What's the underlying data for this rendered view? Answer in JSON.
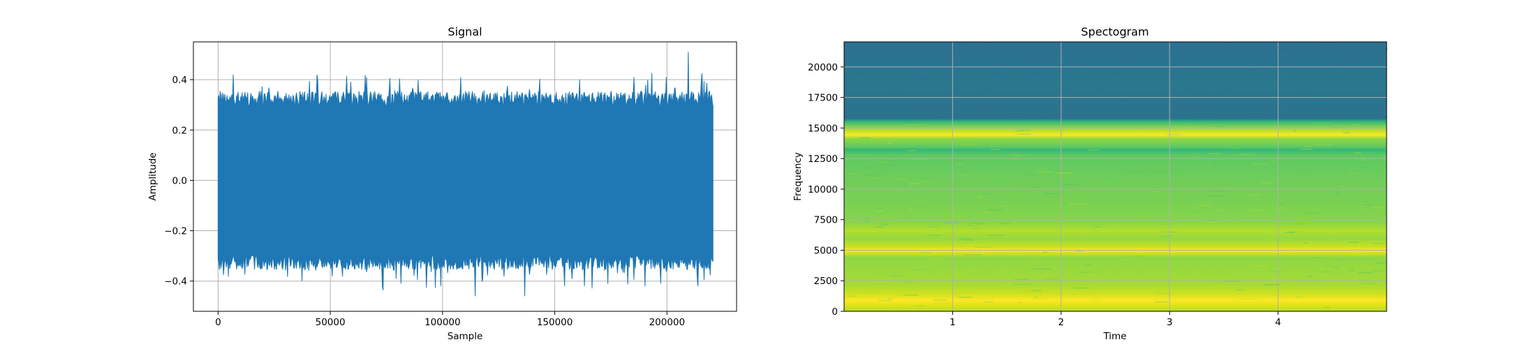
{
  "chart_data": [
    {
      "type": "line",
      "title": "Signal",
      "xlabel": "Sample",
      "ylabel": "Amplitude",
      "xlim": [
        -11000,
        231000
      ],
      "ylim": [
        -0.52,
        0.55
      ],
      "xticks": [
        0,
        50000,
        100000,
        150000,
        200000
      ],
      "xtick_labels": [
        "0",
        "50000",
        "100000",
        "150000",
        "200000"
      ],
      "yticks": [
        -0.4,
        -0.2,
        0.0,
        0.2,
        0.4
      ],
      "ytick_labels": [
        "−0.4",
        "−0.2",
        "0.0",
        "0.2",
        "0.4"
      ],
      "grid": true,
      "color": "#1f77b4",
      "series": [
        {
          "x_range": [
            0,
            220500
          ],
          "typical_band": [
            -0.3,
            0.3
          ],
          "envelope_max": 0.51,
          "envelope_min": -0.46
        }
      ]
    },
    {
      "type": "heatmap",
      "title": "Spectogram",
      "xlabel": "Time",
      "ylabel": "Frequency",
      "xlim": [
        0,
        5
      ],
      "ylim": [
        0,
        22050
      ],
      "xticks": [
        1,
        2,
        3,
        4
      ],
      "xtick_labels": [
        "1",
        "2",
        "3",
        "4"
      ],
      "yticks": [
        0,
        2500,
        5000,
        7500,
        10000,
        12500,
        15000,
        17500,
        20000
      ],
      "ytick_labels": [
        "0",
        "2500",
        "5000",
        "7500",
        "10000",
        "12500",
        "15000",
        "17500",
        "20000"
      ],
      "grid": true,
      "colormap": "viridis",
      "bands": [
        {
          "freq": 800,
          "level": 0.95
        },
        {
          "freq": 5000,
          "level": 0.98
        },
        {
          "freq": 14500,
          "level": 0.92
        }
      ],
      "cutoff_freq": 15500,
      "upper_level": 0.32
    }
  ]
}
